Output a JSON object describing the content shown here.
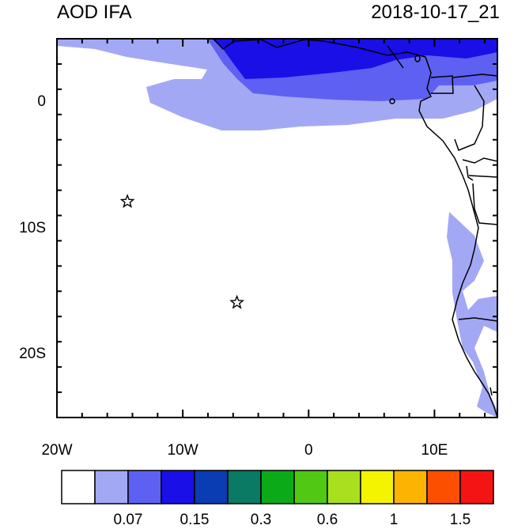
{
  "header": {
    "left_title": "AOD IFA",
    "right_title": "2018-10-17_21"
  },
  "map": {
    "lon_range": [
      -20,
      15
    ],
    "lat_range": [
      -25,
      5
    ],
    "x_ticks": [
      {
        "value": -20,
        "label": "20W"
      },
      {
        "value": -10,
        "label": "10W"
      },
      {
        "value": 0,
        "label": "0"
      },
      {
        "value": 10,
        "label": "10E"
      }
    ],
    "y_ticks": [
      {
        "value": 0,
        "label": "0"
      },
      {
        "value": -10,
        "label": "10S"
      },
      {
        "value": -20,
        "label": "20S"
      }
    ],
    "stations": [
      {
        "name": "star-marker",
        "lon": -14.4,
        "lat": -7.9
      },
      {
        "name": "star-marker",
        "lon": -5.7,
        "lat": -15.9
      }
    ]
  },
  "colorbar": {
    "colors": [
      "#ffffff",
      "#a3a8f5",
      "#5e60f2",
      "#1a0fe6",
      "#0a3cb4",
      "#0a7a64",
      "#0aaa19",
      "#50c814",
      "#a8e01e",
      "#f4f400",
      "#fcb400",
      "#fc5000",
      "#f51414"
    ],
    "labels": [
      {
        "after_box": 2,
        "text": "0.07"
      },
      {
        "after_box": 4,
        "text": "0.15"
      },
      {
        "after_box": 6,
        "text": "0.3"
      },
      {
        "after_box": 8,
        "text": "0.6"
      },
      {
        "after_box": 10,
        "text": "1"
      },
      {
        "after_box": 12,
        "text": "1.5"
      }
    ]
  }
}
